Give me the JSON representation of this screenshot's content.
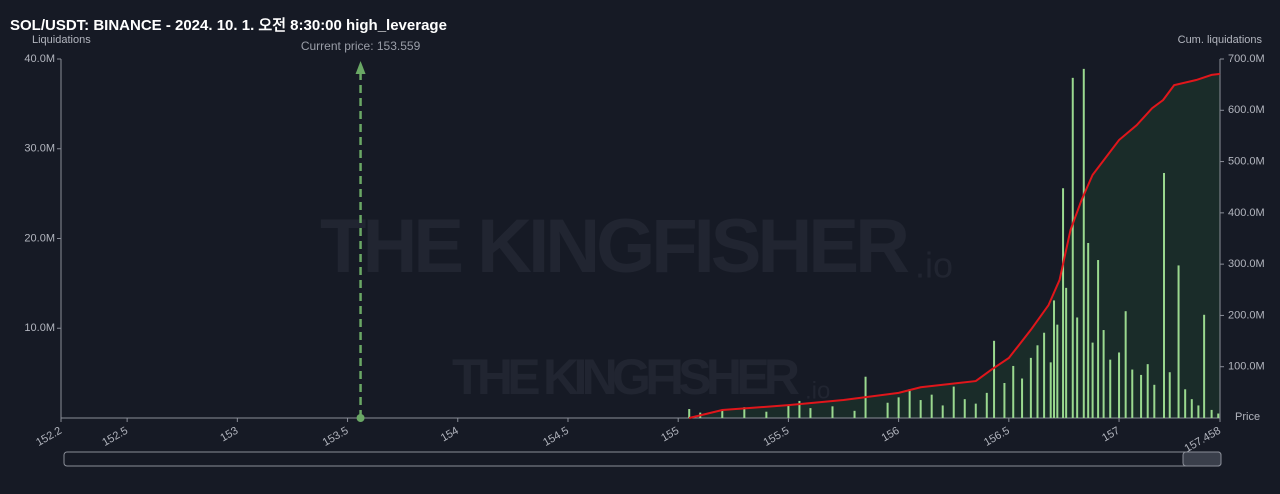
{
  "chart_data": {
    "type": "bar",
    "title": "SOL/USDT: BINANCE - 2024. 10. 1. 오전 8:30:00 high_leverage",
    "y_label": "Liquidations",
    "y2_label": "Cum. liquidations",
    "x_label": "Price",
    "current_price": {
      "value": 153.559,
      "label": "Current price: 153.559"
    },
    "watermark": {
      "text": "THE KINGFISHER",
      "suffix": ".io"
    },
    "xlim": [
      152.2,
      157.458
    ],
    "xticks": [
      152.2,
      152.5,
      153,
      153.5,
      154,
      154.5,
      155,
      155.5,
      156,
      156.5,
      157,
      157.458
    ],
    "ylim": [
      0,
      40
    ],
    "yticks": [
      {
        "value": 10,
        "label": "10.0M"
      },
      {
        "value": 20,
        "label": "20.0M"
      },
      {
        "value": 30,
        "label": "30.0M"
      },
      {
        "value": 40,
        "label": "40.0M"
      }
    ],
    "y2lim": [
      0,
      700
    ],
    "y2ticks": [
      {
        "value": 100,
        "label": "100.0M"
      },
      {
        "value": 200,
        "label": "200.0M"
      },
      {
        "value": 300,
        "label": "300.0M"
      },
      {
        "value": 400,
        "label": "400.0M"
      },
      {
        "value": 500,
        "label": "500.0M"
      },
      {
        "value": 600,
        "label": "600.0M"
      },
      {
        "value": 700,
        "label": "700.0M"
      }
    ],
    "series": [
      {
        "type": "bar",
        "color": "#9ad98f",
        "x": [
          155.05,
          155.1,
          155.2,
          155.3,
          155.4,
          155.5,
          155.55,
          155.6,
          155.7,
          155.8,
          155.85,
          155.95,
          156.0,
          156.05,
          156.1,
          156.15,
          156.2,
          156.25,
          156.3,
          156.35,
          156.4,
          156.433,
          156.48,
          156.52,
          156.56,
          156.6,
          156.63,
          156.66,
          156.69,
          156.705,
          156.72,
          156.746,
          156.76,
          156.79,
          156.81,
          156.84,
          156.86,
          156.88,
          156.905,
          156.93,
          156.96,
          157.0,
          157.03,
          157.06,
          157.1,
          157.13,
          157.16,
          157.204,
          157.23,
          157.27,
          157.3,
          157.33,
          157.36,
          157.386,
          157.42,
          157.45
        ],
        "values": [
          1.0,
          0.6,
          0.9,
          1.2,
          0.7,
          1.5,
          1.9,
          1.1,
          1.3,
          0.8,
          4.6,
          1.7,
          2.3,
          3.2,
          2.0,
          2.6,
          1.4,
          3.5,
          2.1,
          1.6,
          2.8,
          8.6,
          3.9,
          5.8,
          4.4,
          6.7,
          8.1,
          9.5,
          6.2,
          13.1,
          10.4,
          25.6,
          14.5,
          37.9,
          11.2,
          38.9,
          19.5,
          8.4,
          17.6,
          9.8,
          6.5,
          7.3,
          11.9,
          5.4,
          4.8,
          6.0,
          3.7,
          27.3,
          5.1,
          17.0,
          3.2,
          2.1,
          1.4,
          11.5,
          0.9,
          0.5
        ]
      },
      {
        "type": "line",
        "axis": "y2",
        "color": "#e0161b",
        "x": [
          155.05,
          155.2,
          155.5,
          155.75,
          156.0,
          156.1,
          156.35,
          156.42,
          156.5,
          156.6,
          156.68,
          156.73,
          156.78,
          156.83,
          156.88,
          157.0,
          157.08,
          157.15,
          157.2,
          157.25,
          157.35,
          157.42,
          157.458
        ],
        "values": [
          0,
          15.6,
          25,
          35,
          49,
          60,
          72,
          94,
          117,
          172,
          220,
          269,
          367,
          425,
          474,
          542,
          571,
          604,
          620,
          649,
          659,
          669,
          671
        ]
      }
    ]
  }
}
